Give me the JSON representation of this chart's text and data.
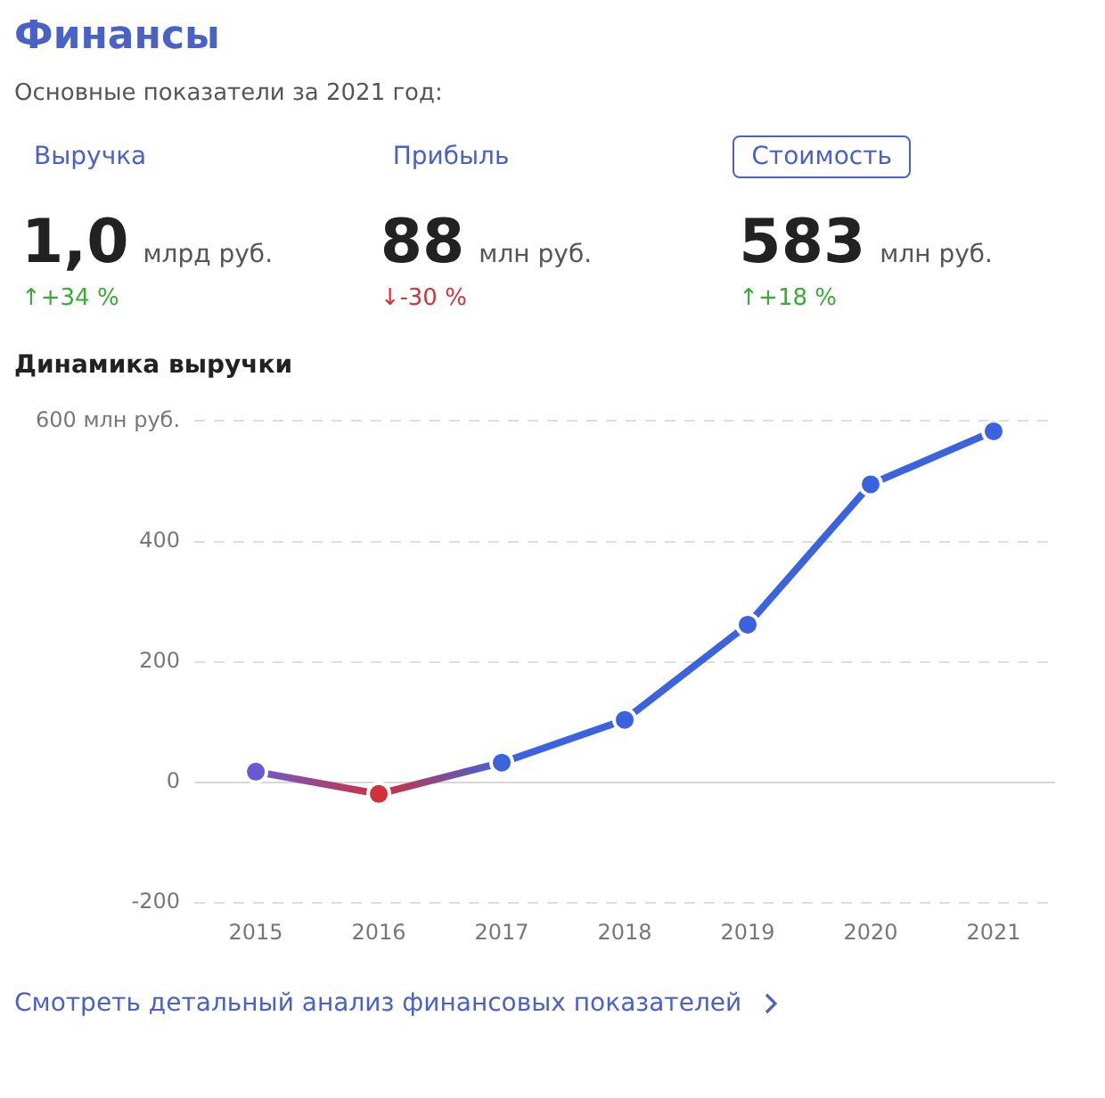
{
  "chart_data": [
    {
      "type": "other",
      "title": "Финансы",
      "subtitle": "Основные показатели за 2021 год:",
      "annotations": [
        "Выручка",
        "1,0",
        "млрд руб.",
        "↑+34 %",
        "Прибыль",
        "88",
        "млн руб.",
        "↓-30 %",
        "Стоимость",
        "583",
        "млн руб.",
        "↑+18 %"
      ],
      "colors": [
        "#3aaa35",
        "#d0343a",
        "#3aaa35"
      ]
    },
    {
      "type": "line",
      "title": "Динамика выручки",
      "categories": [
        "2015",
        "2016",
        "2017",
        "2018",
        "2019",
        "2020",
        "2021"
      ],
      "series": [
        {
          "color": "#3b63e0",
          "colors": [
            "#6a5ad0",
            "#d0323a",
            null,
            null,
            null,
            null,
            null
          ],
          "values": [
            18,
            -19,
            33,
            104,
            262,
            495,
            583
          ]
        }
      ],
      "ylim": [
        -200,
        600
      ],
      "yticks": [
        -200,
        0,
        200,
        400,
        {
          "value": 600,
          "label": "600 млн руб."
        }
      ],
      "grid": "y",
      "legend": false,
      "marker": "circle",
      "line_style": "solid",
      "annotations": [
        "Смотреть детальный анализ финансовых показателей"
      ]
    }
  ]
}
